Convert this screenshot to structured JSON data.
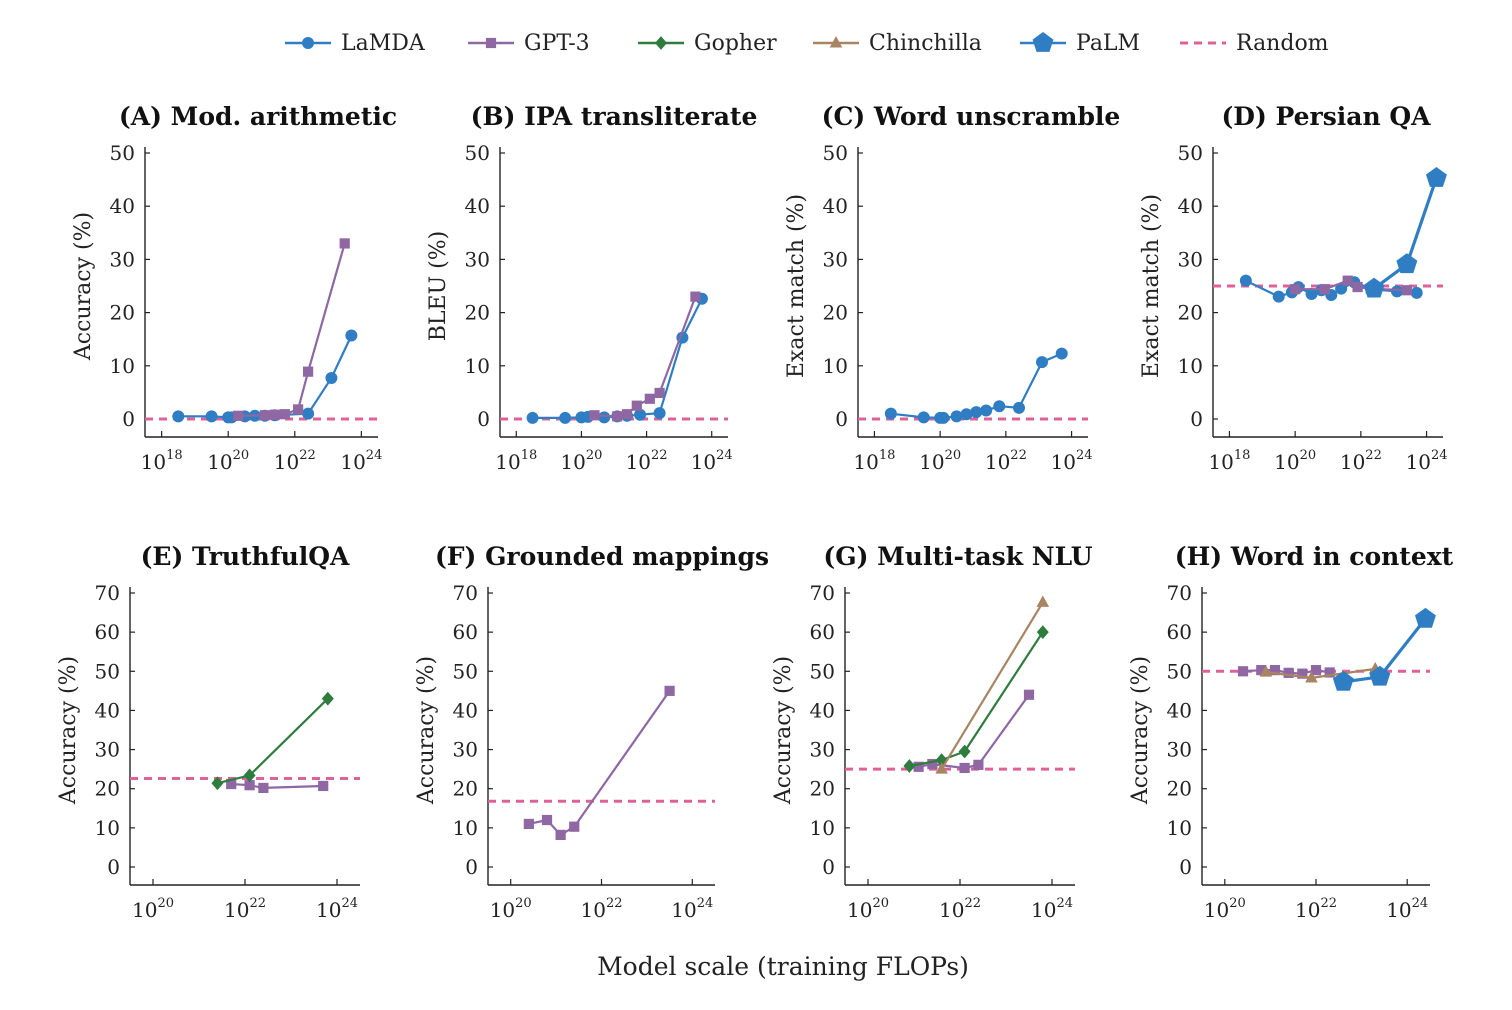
{
  "styles": {
    "LaMDA": {
      "color": "#2f7ec4",
      "marker": "circle"
    },
    "GPT-3": {
      "color": "#8e67a3",
      "marker": "square"
    },
    "Gopher": {
      "color": "#2e7d3f",
      "marker": "diamond"
    },
    "Chinchilla": {
      "color": "#a88463",
      "marker": "triangle"
    },
    "PaLM": {
      "color": "#2f7ec4",
      "marker": "pentagon"
    },
    "Random": {
      "color": "#e0609a",
      "marker": "dashed-line"
    }
  },
  "legend": [
    "LaMDA",
    "GPT-3",
    "Gopher",
    "Chinchilla",
    "PaLM",
    "Random"
  ],
  "xlabel": "Model scale (training FLOPs)",
  "chart_data": [
    {
      "type": "line",
      "title": "(A) Mod. arithmetic",
      "ylabel": "Accuracy (%)",
      "xscale": "log",
      "xlim": [
        17.5,
        24.5
      ],
      "xticks": [
        18,
        20,
        22,
        24
      ],
      "ylim": [
        0,
        50
      ],
      "yticks": [
        0,
        10,
        20,
        30,
        40,
        50
      ],
      "random": 0,
      "series": [
        {
          "name": "LaMDA",
          "points": [
            [
              18.5,
              0.5
            ],
            [
              19.5,
              0.5
            ],
            [
              20.0,
              0.3
            ],
            [
              20.1,
              0.3
            ],
            [
              20.5,
              0.5
            ],
            [
              20.8,
              0.6
            ],
            [
              21.1,
              0.6
            ],
            [
              21.4,
              0.7
            ],
            [
              22.4,
              1.0
            ],
            [
              23.1,
              7.7
            ],
            [
              23.7,
              15.7
            ]
          ]
        },
        {
          "name": "GPT-3",
          "points": [
            [
              20.3,
              0.6
            ],
            [
              21.1,
              0.7
            ],
            [
              21.4,
              0.8
            ],
            [
              21.7,
              0.9
            ],
            [
              22.1,
              1.8
            ],
            [
              22.4,
              8.9
            ],
            [
              23.5,
              33.0
            ]
          ]
        }
      ]
    },
    {
      "type": "line",
      "title": "(B) IPA transliterate",
      "ylabel": "BLEU (%)",
      "xscale": "log",
      "xlim": [
        17.5,
        24.5
      ],
      "xticks": [
        18,
        20,
        22,
        24
      ],
      "ylim": [
        0,
        50
      ],
      "yticks": [
        0,
        10,
        20,
        30,
        40,
        50
      ],
      "random": 0,
      "series": [
        {
          "name": "LaMDA",
          "points": [
            [
              18.5,
              0.2
            ],
            [
              19.5,
              0.2
            ],
            [
              20.0,
              0.3
            ],
            [
              20.2,
              0.4
            ],
            [
              20.7,
              0.3
            ],
            [
              21.1,
              0.5
            ],
            [
              21.4,
              0.6
            ],
            [
              21.8,
              0.8
            ],
            [
              22.4,
              1.1
            ],
            [
              23.1,
              15.3
            ],
            [
              23.7,
              22.6
            ]
          ]
        },
        {
          "name": "GPT-3",
          "points": [
            [
              20.4,
              0.7
            ],
            [
              21.1,
              0.5
            ],
            [
              21.4,
              0.9
            ],
            [
              21.7,
              2.5
            ],
            [
              22.1,
              3.8
            ],
            [
              22.4,
              4.9
            ],
            [
              23.5,
              23.0
            ]
          ]
        }
      ]
    },
    {
      "type": "line",
      "title": "(C) Word unscramble",
      "ylabel": "Exact match (%)",
      "xscale": "log",
      "xlim": [
        17.5,
        24.5
      ],
      "xticks": [
        18,
        20,
        22,
        24
      ],
      "ylim": [
        0,
        50
      ],
      "yticks": [
        0,
        10,
        20,
        30,
        40,
        50
      ],
      "random": 0,
      "series": [
        {
          "name": "LaMDA",
          "points": [
            [
              18.5,
              1.0
            ],
            [
              19.5,
              0.3
            ],
            [
              20.0,
              0.2
            ],
            [
              20.1,
              0.2
            ],
            [
              20.5,
              0.5
            ],
            [
              20.8,
              0.9
            ],
            [
              21.1,
              1.3
            ],
            [
              21.4,
              1.6
            ],
            [
              21.8,
              2.4
            ],
            [
              22.4,
              2.1
            ],
            [
              23.1,
              10.7
            ],
            [
              23.7,
              12.3
            ]
          ]
        }
      ]
    },
    {
      "type": "line",
      "title": "(D) Persian QA",
      "ylabel": "Exact match (%)",
      "xscale": "log",
      "xlim": [
        17.5,
        24.5
      ],
      "xticks": [
        18,
        20,
        22,
        24
      ],
      "ylim": [
        0,
        50
      ],
      "yticks": [
        0,
        10,
        20,
        30,
        40,
        50
      ],
      "random": 25,
      "series": [
        {
          "name": "LaMDA",
          "points": [
            [
              18.5,
              26.0
            ],
            [
              19.5,
              23.0
            ],
            [
              19.9,
              23.8
            ],
            [
              20.1,
              24.8
            ],
            [
              20.5,
              23.5
            ],
            [
              20.8,
              24.2
            ],
            [
              21.1,
              23.3
            ],
            [
              21.4,
              24.5
            ],
            [
              21.8,
              25.7
            ],
            [
              22.4,
              24.3
            ],
            [
              23.1,
              24.0
            ],
            [
              23.7,
              23.7
            ]
          ]
        },
        {
          "name": "GPT-3",
          "points": [
            [
              20.0,
              24.4
            ],
            [
              20.9,
              24.4
            ],
            [
              21.6,
              26.0
            ],
            [
              21.9,
              24.8
            ],
            [
              22.3,
              24.5
            ],
            [
              23.4,
              24.2
            ]
          ]
        },
        {
          "name": "PaLM",
          "points": [
            [
              22.4,
              24.5
            ],
            [
              23.4,
              29.1
            ],
            [
              24.3,
              45.3
            ]
          ]
        }
      ]
    },
    {
      "type": "line",
      "title": "(E) TruthfulQA",
      "ylabel": "Accuracy (%)",
      "xscale": "log",
      "xlim": [
        19.5,
        24.5
      ],
      "xticks": [
        20,
        22,
        24
      ],
      "ylim": [
        0,
        70
      ],
      "yticks": [
        0,
        10,
        20,
        30,
        40,
        50,
        60,
        70
      ],
      "random": 22.6,
      "series": [
        {
          "name": "GPT-3",
          "points": [
            [
              21.7,
              21.2
            ],
            [
              22.1,
              20.9
            ],
            [
              22.4,
              20.2
            ],
            [
              23.7,
              20.7
            ]
          ]
        },
        {
          "name": "Gopher",
          "points": [
            [
              21.4,
              21.4
            ],
            [
              22.1,
              23.4
            ],
            [
              23.8,
              43.0
            ]
          ]
        }
      ]
    },
    {
      "type": "line",
      "title": "(F) Grounded mappings",
      "ylabel": "Accuracy (%)",
      "xscale": "log",
      "xlim": [
        19.5,
        24.5
      ],
      "xticks": [
        20,
        22,
        24
      ],
      "ylim": [
        0,
        70
      ],
      "yticks": [
        0,
        10,
        20,
        30,
        40,
        50,
        60,
        70
      ],
      "random": 16.8,
      "series": [
        {
          "name": "GPT-3",
          "points": [
            [
              20.4,
              11.0
            ],
            [
              20.8,
              12.0
            ],
            [
              21.1,
              8.2
            ],
            [
              21.4,
              10.3
            ],
            [
              23.5,
              45.0
            ]
          ]
        }
      ]
    },
    {
      "type": "line",
      "title": "(G) Multi-task NLU",
      "ylabel": "Accuracy (%)",
      "xscale": "log",
      "xlim": [
        19.5,
        24.5
      ],
      "xticks": [
        20,
        22,
        24
      ],
      "ylim": [
        0,
        70
      ],
      "yticks": [
        0,
        10,
        20,
        30,
        40,
        50,
        60,
        70
      ],
      "random": 25,
      "series": [
        {
          "name": "GPT-3",
          "points": [
            [
              21.1,
              25.6
            ],
            [
              21.4,
              26.3
            ],
            [
              22.1,
              25.3
            ],
            [
              22.4,
              26.1
            ],
            [
              23.5,
              44.0
            ]
          ]
        },
        {
          "name": "Gopher",
          "points": [
            [
              20.9,
              25.8
            ],
            [
              21.6,
              27.3
            ],
            [
              22.1,
              29.5
            ],
            [
              23.8,
              60.0
            ]
          ]
        },
        {
          "name": "Chinchilla",
          "points": [
            [
              21.6,
              25.0
            ],
            [
              23.8,
              67.6
            ]
          ]
        }
      ]
    },
    {
      "type": "line",
      "title": "(H) Word in context",
      "ylabel": "Accuracy (%)",
      "xscale": "log",
      "xlim": [
        19.5,
        24.5
      ],
      "xticks": [
        20,
        22,
        24
      ],
      "ylim": [
        0,
        70
      ],
      "yticks": [
        0,
        10,
        20,
        30,
        40,
        50,
        60,
        70
      ],
      "random": 50,
      "series": [
        {
          "name": "GPT-3",
          "points": [
            [
              20.4,
              50.0
            ],
            [
              20.8,
              50.3
            ],
            [
              21.1,
              50.3
            ],
            [
              21.4,
              49.6
            ],
            [
              21.7,
              49.4
            ],
            [
              22.0,
              50.3
            ],
            [
              22.3,
              49.7
            ]
          ]
        },
        {
          "name": "Chinchilla",
          "points": [
            [
              20.9,
              49.8
            ],
            [
              21.9,
              48.3
            ],
            [
              23.3,
              50.6
            ]
          ]
        },
        {
          "name": "PaLM",
          "points": [
            [
              22.6,
              47.3
            ],
            [
              23.4,
              48.6
            ],
            [
              24.4,
              63.4
            ]
          ]
        }
      ]
    }
  ]
}
